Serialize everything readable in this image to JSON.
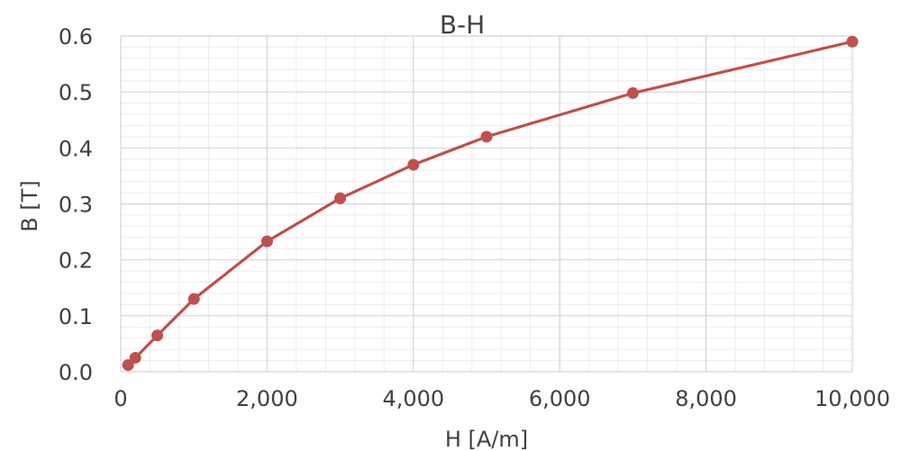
{
  "chart_data": {
    "type": "line",
    "title": "B-H",
    "xlabel": "H [A/m]",
    "ylabel": "B [T]",
    "xlim": [
      0,
      10000
    ],
    "ylim": [
      0,
      0.6
    ],
    "x_ticks": [
      "0",
      "2,000",
      "4,000",
      "6,000",
      "8,000",
      "10,000"
    ],
    "y_ticks": [
      "0.0",
      "0.1",
      "0.2",
      "0.3",
      "0.4",
      "0.5",
      "0.6"
    ],
    "grid": true,
    "series": [
      {
        "name": "",
        "color": "#C0504D",
        "x": [
          100,
          200,
          500,
          1000,
          2000,
          3000,
          4000,
          5000,
          7000,
          10000
        ],
        "y": [
          0.012,
          0.025,
          0.065,
          0.13,
          0.233,
          0.31,
          0.37,
          0.42,
          0.498,
          0.59
        ]
      }
    ]
  }
}
